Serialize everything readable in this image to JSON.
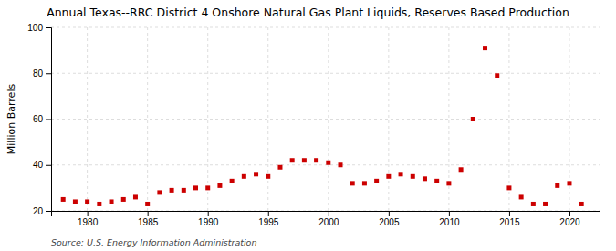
{
  "chart_data": {
    "type": "scatter",
    "title": "Annual Texas--RRC District 4 Onshore Natural Gas Plant Liquids, Reserves Based Production",
    "ylabel": "Million Barrels",
    "source": "Source: U.S. Energy Information Administration",
    "x": [
      1978,
      1979,
      1980,
      1981,
      1982,
      1983,
      1984,
      1985,
      1986,
      1987,
      1988,
      1989,
      1990,
      1991,
      1992,
      1993,
      1994,
      1995,
      1996,
      1997,
      1998,
      1999,
      2000,
      2001,
      2002,
      2003,
      2004,
      2005,
      2006,
      2007,
      2008,
      2009,
      2010,
      2011,
      2012,
      2013,
      2014,
      2015,
      2016,
      2017,
      2018,
      2019,
      2020,
      2021
    ],
    "values": [
      25,
      24,
      24,
      23,
      24,
      25,
      26,
      23,
      28,
      29,
      29,
      30,
      30,
      31,
      33,
      35,
      36,
      35,
      39,
      42,
      42,
      42,
      41,
      40,
      32,
      32,
      33,
      35,
      36,
      35,
      34,
      33,
      32,
      38,
      60,
      91,
      79,
      30,
      26,
      23,
      23,
      31,
      32,
      23
    ],
    "color": "#cc0000",
    "marker": "square",
    "xlim": [
      1977.0,
      2022.5
    ],
    "ylim": [
      20,
      100
    ],
    "xticks": [
      1980,
      1985,
      1990,
      1995,
      2000,
      2005,
      2010,
      2015,
      2020
    ],
    "yticks": [
      20,
      40,
      60,
      80,
      100
    ],
    "grid": true
  }
}
